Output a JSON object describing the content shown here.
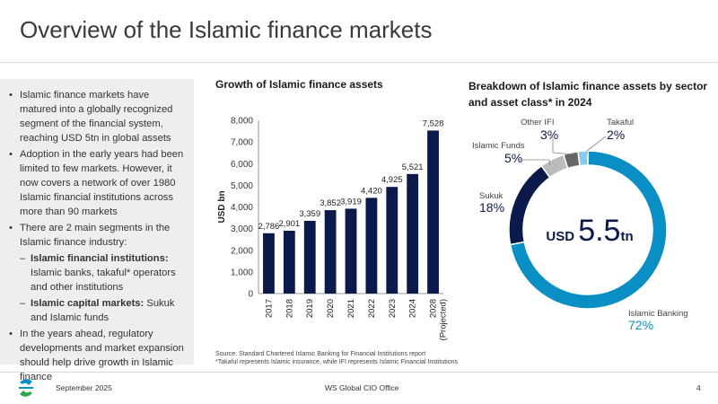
{
  "slide": {
    "title": "Overview of the Islamic finance markets",
    "bullets": [
      {
        "kind": "bullet",
        "text": "Islamic finance markets have matured into a globally recognized segment of the financial system, reaching USD 5tn in global assets"
      },
      {
        "kind": "bullet",
        "text": "Adoption in the early years had been limited to few markets. However, it now covers a network of over 1980 Islamic financial institutions across more than 90 markets"
      },
      {
        "kind": "bullet",
        "text": "There are 2 main segments in the Islamic finance industry:"
      },
      {
        "kind": "sub",
        "bold": "Islamic financial institutions:",
        "text": " Islamic banks, takaful* operators and other institutions"
      },
      {
        "kind": "sub",
        "bold": "Islamic capital markets:",
        "text": " Sukuk and Islamic funds"
      },
      {
        "kind": "bullet",
        "text": "In the years ahead, regulatory developments and market expansion should help drive growth in Islamic finance"
      }
    ],
    "source": "Source: Standard Chartered Islamic Banking for Financial Institutions report",
    "footnote": "*Takaful represents Islamic insurance, while IFI represents Islamic Financial Institutions",
    "footer": {
      "date": "September 2025",
      "office": "WS Global CIO Office",
      "page": "4"
    }
  },
  "chart_data": [
    {
      "type": "bar",
      "title": "Growth of Islamic finance assets",
      "ylabel": "USD bn",
      "categories": [
        "2017",
        "2018",
        "2019",
        "2020",
        "2021",
        "2022",
        "2023",
        "2024",
        "2028 (Projected)"
      ],
      "values": [
        2786,
        2901,
        3359,
        3852,
        3919,
        4420,
        4925,
        5521,
        7528
      ],
      "value_labels": [
        "2,786",
        "2,901",
        "3,359",
        "3,852",
        "3,919",
        "4,420",
        "4,925",
        "5,521",
        "7,528"
      ],
      "ylim": [
        0,
        8000
      ],
      "yticks": [
        "0",
        "1,000",
        "2,000",
        "3,000",
        "4,000",
        "5,000",
        "6,000",
        "7,000",
        "8,000"
      ],
      "color": "#0b1a4a"
    },
    {
      "type": "pie",
      "title": "Breakdown of Islamic finance assets by sector and asset class* in 2024",
      "center_prefix": "USD",
      "center_value": "5.5",
      "center_suffix": "tn",
      "slices": [
        {
          "name": "Islamic Banking",
          "value": 72,
          "label": "72%",
          "color": "#0a8fc4"
        },
        {
          "name": "Sukuk",
          "value": 18,
          "label": "18%",
          "color": "#0b1a4a"
        },
        {
          "name": "Islamic Funds",
          "value": 5,
          "label": "5%",
          "color": "#bcbcbc"
        },
        {
          "name": "Other IFI",
          "value": 3,
          "label": "3%",
          "color": "#666666"
        },
        {
          "name": "Takaful",
          "value": 2,
          "label": "2%",
          "color": "#8ec8ea"
        }
      ]
    }
  ]
}
